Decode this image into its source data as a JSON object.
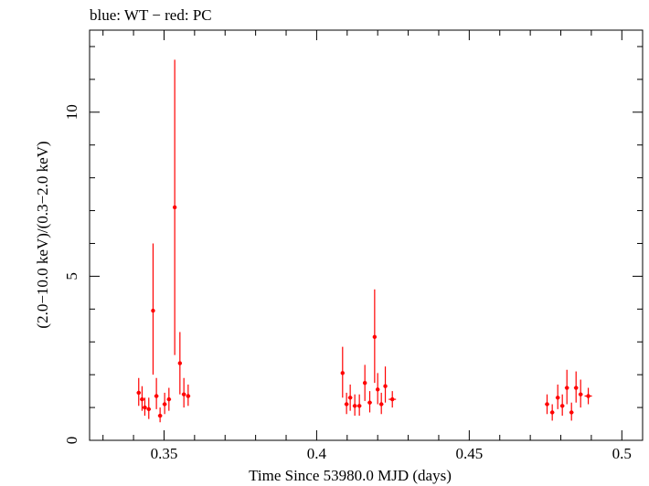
{
  "chart_data": {
    "type": "scatter",
    "title": "blue: WT − red: PC",
    "xlabel": "Time Since 53980.0 MJD (days)",
    "ylabel": "(2.0−10.0 keV)/(0.3−2.0 keV)",
    "xlim": [
      0.3256,
      0.5068
    ],
    "ylim": [
      0,
      12.5
    ],
    "x_ticks": [
      0.35,
      0.4,
      0.45,
      0.5
    ],
    "x_tick_labels": [
      "0.35",
      "0.4",
      "0.45",
      "0.5"
    ],
    "y_ticks": [
      0,
      5,
      10
    ],
    "y_tick_labels": [
      "0",
      "5",
      "10"
    ],
    "grid": false,
    "series": [
      {
        "name": "PC",
        "color": "#ff0000",
        "points": [
          {
            "x": 0.3417,
            "y": 1.45,
            "xerr": 0.0007,
            "ylo": 1.05,
            "yhi": 1.9
          },
          {
            "x": 0.3428,
            "y": 1.25,
            "xerr": 0.0007,
            "ylo": 0.9,
            "yhi": 1.65
          },
          {
            "x": 0.3437,
            "y": 1.0,
            "xerr": 0.0007,
            "ylo": 0.75,
            "yhi": 1.3
          },
          {
            "x": 0.345,
            "y": 0.95,
            "xerr": 0.0007,
            "ylo": 0.65,
            "yhi": 1.3
          },
          {
            "x": 0.3464,
            "y": 3.95,
            "xerr": 0.0005,
            "ylo": 2.0,
            "yhi": 6.0
          },
          {
            "x": 0.3475,
            "y": 1.35,
            "xerr": 0.0007,
            "ylo": 0.95,
            "yhi": 1.9
          },
          {
            "x": 0.3487,
            "y": 0.75,
            "xerr": 0.0007,
            "ylo": 0.55,
            "yhi": 1.0
          },
          {
            "x": 0.3502,
            "y": 1.1,
            "xerr": 0.0007,
            "ylo": 0.8,
            "yhi": 1.45
          },
          {
            "x": 0.3516,
            "y": 1.25,
            "xerr": 0.0007,
            "ylo": 0.9,
            "yhi": 1.6
          },
          {
            "x": 0.3535,
            "y": 7.1,
            "xerr": 0.0005,
            "ylo": 2.6,
            "yhi": 11.6
          },
          {
            "x": 0.3552,
            "y": 2.35,
            "xerr": 0.0005,
            "ylo": 1.4,
            "yhi": 3.3
          },
          {
            "x": 0.3565,
            "y": 1.4,
            "xerr": 0.0007,
            "ylo": 1.0,
            "yhi": 1.9
          },
          {
            "x": 0.3579,
            "y": 1.35,
            "xerr": 0.0007,
            "ylo": 1.05,
            "yhi": 1.7
          },
          {
            "x": 0.4085,
            "y": 2.05,
            "xerr": 0.0005,
            "ylo": 1.3,
            "yhi": 2.85
          },
          {
            "x": 0.4098,
            "y": 1.1,
            "xerr": 0.0007,
            "ylo": 0.8,
            "yhi": 1.45
          },
          {
            "x": 0.411,
            "y": 1.3,
            "xerr": 0.0007,
            "ylo": 0.9,
            "yhi": 1.7
          },
          {
            "x": 0.4125,
            "y": 1.05,
            "xerr": 0.0007,
            "ylo": 0.75,
            "yhi": 1.4
          },
          {
            "x": 0.414,
            "y": 1.05,
            "xerr": 0.0007,
            "ylo": 0.75,
            "yhi": 1.4
          },
          {
            "x": 0.4158,
            "y": 1.75,
            "xerr": 0.0006,
            "ylo": 1.2,
            "yhi": 2.3
          },
          {
            "x": 0.4174,
            "y": 1.15,
            "xerr": 0.0007,
            "ylo": 0.85,
            "yhi": 1.5
          },
          {
            "x": 0.419,
            "y": 3.15,
            "xerr": 0.0005,
            "ylo": 1.75,
            "yhi": 4.6
          },
          {
            "x": 0.42,
            "y": 1.55,
            "xerr": 0.0006,
            "ylo": 1.1,
            "yhi": 2.05
          },
          {
            "x": 0.4212,
            "y": 1.1,
            "xerr": 0.0007,
            "ylo": 0.8,
            "yhi": 1.45
          },
          {
            "x": 0.4225,
            "y": 1.65,
            "xerr": 0.0006,
            "ylo": 1.15,
            "yhi": 2.25
          },
          {
            "x": 0.4248,
            "y": 1.25,
            "xerr": 0.0012,
            "ylo": 1.0,
            "yhi": 1.5
          },
          {
            "x": 0.4755,
            "y": 1.1,
            "xerr": 0.0007,
            "ylo": 0.8,
            "yhi": 1.4
          },
          {
            "x": 0.4772,
            "y": 0.85,
            "xerr": 0.0007,
            "ylo": 0.6,
            "yhi": 1.1
          },
          {
            "x": 0.479,
            "y": 1.3,
            "xerr": 0.0007,
            "ylo": 0.95,
            "yhi": 1.7
          },
          {
            "x": 0.4805,
            "y": 1.05,
            "xerr": 0.0007,
            "ylo": 0.75,
            "yhi": 1.4
          },
          {
            "x": 0.482,
            "y": 1.6,
            "xerr": 0.0007,
            "ylo": 1.1,
            "yhi": 2.15
          },
          {
            "x": 0.4835,
            "y": 0.85,
            "xerr": 0.0007,
            "ylo": 0.6,
            "yhi": 1.15
          },
          {
            "x": 0.485,
            "y": 1.6,
            "xerr": 0.0007,
            "ylo": 1.15,
            "yhi": 2.1
          },
          {
            "x": 0.4865,
            "y": 1.4,
            "xerr": 0.0007,
            "ylo": 1.0,
            "yhi": 1.85
          },
          {
            "x": 0.489,
            "y": 1.35,
            "xerr": 0.0012,
            "ylo": 1.1,
            "yhi": 1.6
          }
        ]
      }
    ]
  }
}
